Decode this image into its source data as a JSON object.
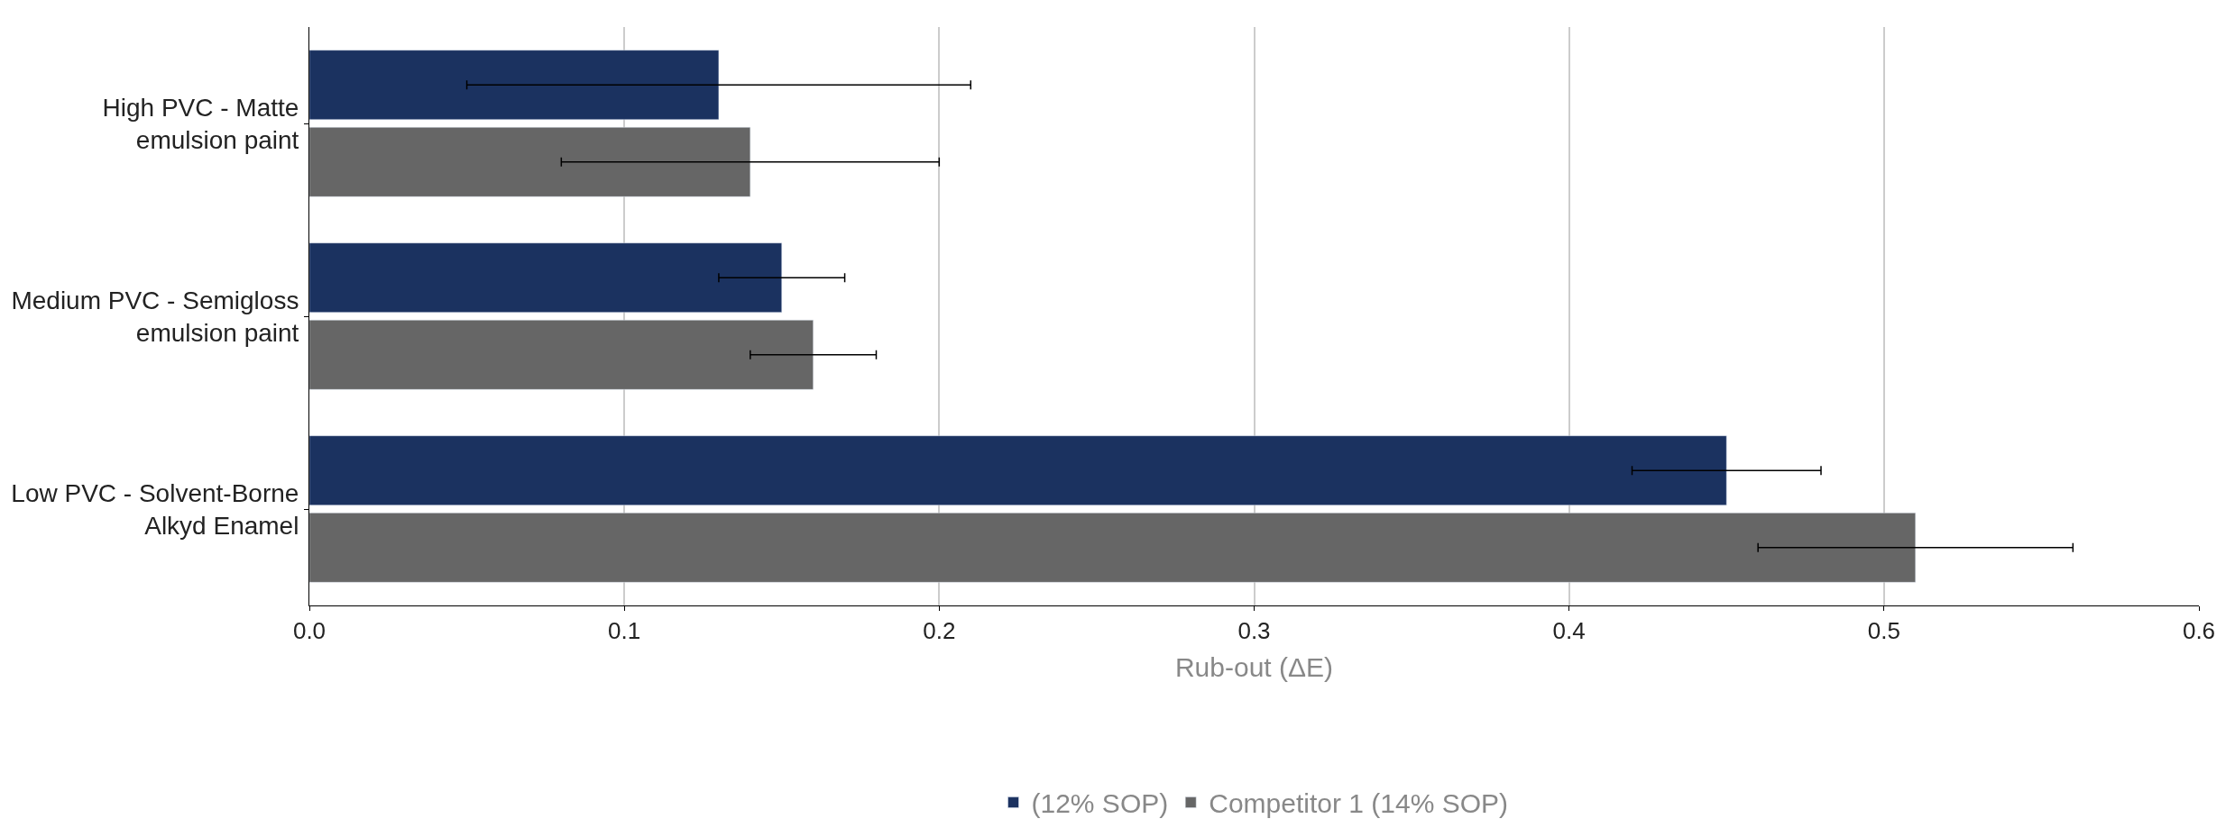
{
  "chart_data": {
    "type": "bar",
    "orientation": "horizontal",
    "xlabel": "Rub-out (ΔE)",
    "categories": [
      "High PVC - Matte\nemulsion paint",
      "Medium PVC - Semigloss\nemulsion paint",
      "Low PVC - Solvent-Borne\nAlkyd Enamel"
    ],
    "series": [
      {
        "name": "(12% SOP)",
        "color": "#1b3260",
        "values": [
          0.13,
          0.15,
          0.45
        ],
        "errors": [
          [
            0.05,
            0.21
          ],
          [
            0.13,
            0.17
          ],
          [
            0.42,
            0.48
          ]
        ]
      },
      {
        "name": "Competitor 1 (14% SOP)",
        "color": "#666666",
        "values": [
          0.14,
          0.16,
          0.51
        ],
        "errors": [
          [
            0.08,
            0.2
          ],
          [
            0.14,
            0.18
          ],
          [
            0.46,
            0.56
          ]
        ]
      }
    ],
    "xlim": [
      0,
      0.6
    ],
    "xticks": [
      {
        "value": 0,
        "label": "0.0"
      },
      0.1,
      0.2,
      0.3,
      0.4,
      0.5,
      0.6
    ],
    "grid": "x",
    "legend": "bottom"
  }
}
